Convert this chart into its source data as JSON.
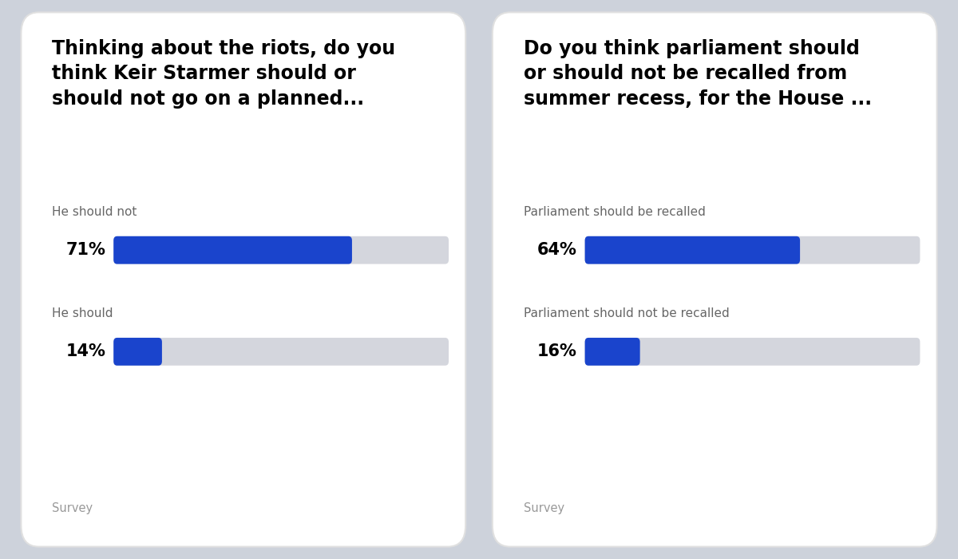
{
  "panel1": {
    "title": "Thinking about the riots, do you\nthink Keir Starmer should or\nshould not go on a planned...",
    "bars": [
      {
        "label": "He should not",
        "pct": 71,
        "pct_text": "71%"
      },
      {
        "label": "He should",
        "pct": 14,
        "pct_text": "14%"
      }
    ],
    "source": "Survey"
  },
  "panel2": {
    "title": "Do you think parliament should\nor should not be recalled from\nsummer recess, for the House ...",
    "bars": [
      {
        "label": "Parliament should be recalled",
        "pct": 64,
        "pct_text": "64%"
      },
      {
        "label": "Parliament should not be recalled",
        "pct": 16,
        "pct_text": "16%"
      }
    ],
    "source": "Survey"
  },
  "bar_color": "#1a44cc",
  "bg_color": "#cdd2db",
  "card_color": "#ffffff",
  "label_color": "#666666",
  "pct_text_color": "#000000",
  "title_color": "#000000",
  "source_color": "#999999",
  "gray_bar_color": "#d4d6dd",
  "title_fontsize": 17,
  "label_fontsize": 11,
  "pct_fontsize": 15,
  "source_fontsize": 10.5
}
